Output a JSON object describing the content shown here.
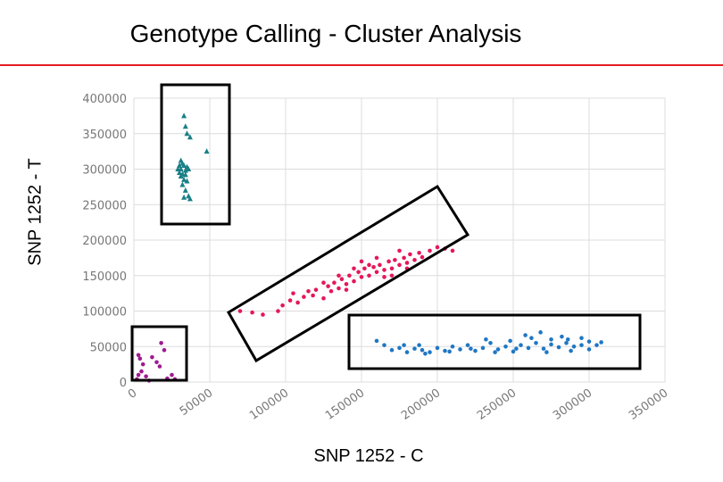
{
  "slide": {
    "title": "Genotype Calling - Cluster Analysis"
  },
  "chart_data": {
    "type": "scatter",
    "title": "Genotype Calling - Cluster Analysis",
    "xlabel": "SNP 1252 - C",
    "ylabel": "SNP 1252 - T",
    "xlim": [
      0,
      350000
    ],
    "ylim": [
      0,
      400000
    ],
    "x_ticks": [
      "0",
      "50000",
      "100000",
      "150000",
      "200000",
      "250000",
      "300000",
      "350000"
    ],
    "y_ticks": [
      "0",
      "50000",
      "100000",
      "150000",
      "200000",
      "250000",
      "300000",
      "350000",
      "400000"
    ],
    "grid": true,
    "colors": {
      "accent_rule": "#e31c24",
      "grid": "#dcdcdc",
      "box": "#000000"
    },
    "series": [
      {
        "color": "#1a7f86",
        "marker": "triangle",
        "points": [
          [
            33000,
            375000
          ],
          [
            34000,
            360000
          ],
          [
            35000,
            350000
          ],
          [
            37000,
            345000
          ],
          [
            31000,
            312000
          ],
          [
            32000,
            308000
          ],
          [
            30000,
            305000
          ],
          [
            33000,
            305000
          ],
          [
            35000,
            303000
          ],
          [
            29000,
            300000
          ],
          [
            31000,
            300000
          ],
          [
            34000,
            298000
          ],
          [
            36000,
            300000
          ],
          [
            30000,
            295000
          ],
          [
            32000,
            293000
          ],
          [
            34000,
            292000
          ],
          [
            31000,
            290000
          ],
          [
            33000,
            285000
          ],
          [
            35000,
            283000
          ],
          [
            32000,
            278000
          ],
          [
            34000,
            270000
          ],
          [
            36000,
            262000
          ],
          [
            33000,
            260000
          ],
          [
            37000,
            258000
          ],
          [
            48000,
            325000
          ]
        ]
      },
      {
        "color": "#e5175a",
        "marker": "circle",
        "points": [
          [
            70000,
            100000
          ],
          [
            78000,
            98000
          ],
          [
            85000,
            95000
          ],
          [
            98000,
            108000
          ],
          [
            103000,
            115000
          ],
          [
            108000,
            112000
          ],
          [
            105000,
            125000
          ],
          [
            112000,
            120000
          ],
          [
            118000,
            122000
          ],
          [
            120000,
            130000
          ],
          [
            125000,
            118000
          ],
          [
            128000,
            135000
          ],
          [
            130000,
            128000
          ],
          [
            132000,
            140000
          ],
          [
            135000,
            132000
          ],
          [
            137000,
            145000
          ],
          [
            140000,
            138000
          ],
          [
            142000,
            150000
          ],
          [
            145000,
            142000
          ],
          [
            148000,
            155000
          ],
          [
            150000,
            148000
          ],
          [
            152000,
            160000
          ],
          [
            155000,
            150000
          ],
          [
            158000,
            162000
          ],
          [
            160000,
            155000
          ],
          [
            162000,
            165000
          ],
          [
            165000,
            158000
          ],
          [
            168000,
            170000
          ],
          [
            170000,
            160000
          ],
          [
            172000,
            172000
          ],
          [
            175000,
            165000
          ],
          [
            178000,
            175000
          ],
          [
            180000,
            168000
          ],
          [
            182000,
            180000
          ],
          [
            185000,
            172000
          ],
          [
            188000,
            182000
          ],
          [
            190000,
            176000
          ],
          [
            195000,
            185000
          ],
          [
            200000,
            190000
          ],
          [
            205000,
            188000
          ],
          [
            210000,
            185000
          ],
          [
            175000,
            185000
          ],
          [
            165000,
            148000
          ],
          [
            155000,
            165000
          ],
          [
            145000,
            160000
          ],
          [
            135000,
            150000
          ],
          [
            125000,
            140000
          ],
          [
            115000,
            128000
          ],
          [
            95000,
            100000
          ],
          [
            140000,
            130000
          ],
          [
            150000,
            170000
          ],
          [
            160000,
            175000
          ],
          [
            170000,
            150000
          ],
          [
            180000,
            160000
          ]
        ]
      },
      {
        "color": "#1f77c4",
        "marker": "circle",
        "points": [
          [
            160000,
            58000
          ],
          [
            165000,
            52000
          ],
          [
            170000,
            45000
          ],
          [
            175000,
            48000
          ],
          [
            180000,
            42000
          ],
          [
            185000,
            47000
          ],
          [
            188000,
            52000
          ],
          [
            190000,
            45000
          ],
          [
            195000,
            42000
          ],
          [
            200000,
            48000
          ],
          [
            205000,
            44000
          ],
          [
            210000,
            50000
          ],
          [
            215000,
            46000
          ],
          [
            220000,
            52000
          ],
          [
            225000,
            44000
          ],
          [
            230000,
            48000
          ],
          [
            235000,
            55000
          ],
          [
            240000,
            46000
          ],
          [
            245000,
            50000
          ],
          [
            250000,
            43000
          ],
          [
            255000,
            52000
          ],
          [
            260000,
            48000
          ],
          [
            265000,
            55000
          ],
          [
            270000,
            47000
          ],
          [
            275000,
            53000
          ],
          [
            280000,
            49000
          ],
          [
            285000,
            55000
          ],
          [
            290000,
            50000
          ],
          [
            295000,
            52000
          ],
          [
            300000,
            57000
          ],
          [
            305000,
            52000
          ],
          [
            308000,
            56000
          ],
          [
            262000,
            62000
          ],
          [
            268000,
            70000
          ],
          [
            275000,
            60000
          ],
          [
            282000,
            64000
          ],
          [
            295000,
            62000
          ],
          [
            178000,
            52000
          ],
          [
            192000,
            40000
          ],
          [
            208000,
            43000
          ],
          [
            222000,
            47000
          ],
          [
            238000,
            42000
          ],
          [
            252000,
            47000
          ],
          [
            272000,
            42000
          ],
          [
            288000,
            44000
          ],
          [
            300000,
            46000
          ],
          [
            248000,
            58000
          ],
          [
            232000,
            60000
          ],
          [
            258000,
            66000
          ],
          [
            286000,
            60000
          ]
        ]
      },
      {
        "color": "#a0198f",
        "marker": "circle",
        "points": [
          [
            3000,
            38000
          ],
          [
            4000,
            33000
          ],
          [
            6000,
            25000
          ],
          [
            5000,
            15000
          ],
          [
            3000,
            10000
          ],
          [
            8000,
            8000
          ],
          [
            2000,
            4000
          ],
          [
            12000,
            35000
          ],
          [
            15000,
            28000
          ],
          [
            18000,
            55000
          ],
          [
            20000,
            45000
          ],
          [
            17000,
            22000
          ],
          [
            22000,
            5000
          ],
          [
            27000,
            4000
          ],
          [
            10000,
            2000
          ],
          [
            25000,
            10000
          ]
        ]
      }
    ],
    "annotation_boxes": 4
  }
}
